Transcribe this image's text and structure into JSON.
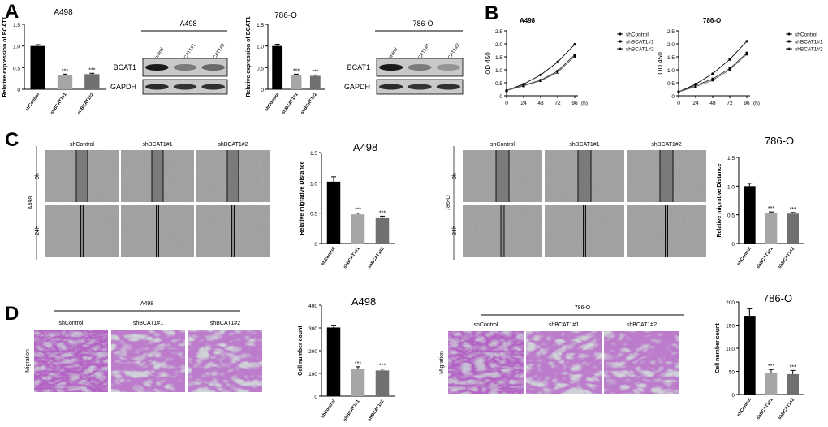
{
  "panels": {
    "A": {
      "letter": "A",
      "bar_ylabel": "Relative expression of BCAT1",
      "blot_rows": [
        "BCAT1",
        "GAPDH"
      ],
      "lanes": [
        "shControl",
        "shBCAT1#1",
        "shBCAT1#2"
      ]
    },
    "B": {
      "letter": "B",
      "xunit": "(h)",
      "ylabel": "OD 450"
    },
    "C": {
      "letter": "C",
      "cols": [
        "shControl",
        "shBCAT1#1",
        "shBCAT1#2"
      ],
      "rows": [
        "0h",
        "24h"
      ],
      "bar_ylabel": "Relative migrative Distance"
    },
    "D": {
      "letter": "D",
      "cols": [
        "shControl",
        "shBCAT1#1",
        "shBCAT1#2"
      ],
      "row": "Migration",
      "bar_ylabel": "Cell number count"
    }
  },
  "colors": {
    "black": "#000000",
    "gray": "#a6a6a6",
    "darkgray": "#707070"
  },
  "chart_data": [
    {
      "id": "A-A498-bar",
      "type": "bar",
      "title": "A498",
      "categories": [
        "shControl",
        "shBCAT1#1",
        "shBCAT1#2"
      ],
      "values": [
        1.0,
        0.33,
        0.35
      ],
      "errors": [
        0.03,
        0.02,
        0.02
      ],
      "significance": [
        "",
        "***",
        "***"
      ],
      "ylabel": "Relative expression of BCAT1",
      "ylim": [
        0,
        1.5
      ],
      "yticks": [
        0,
        0.5,
        1.0,
        1.5
      ]
    },
    {
      "id": "A-786O-bar",
      "type": "bar",
      "title": "786-O",
      "categories": [
        "shControl",
        "shBCAT1#1",
        "shBCAT1#2"
      ],
      "values": [
        1.0,
        0.33,
        0.31
      ],
      "errors": [
        0.04,
        0.02,
        0.02
      ],
      "significance": [
        "",
        "***",
        "***"
      ],
      "ylabel": "Relative expression of BCAT1",
      "ylim": [
        0,
        1.5
      ],
      "yticks": [
        0,
        0.5,
        1.0,
        1.5
      ]
    },
    {
      "id": "B-A498-line",
      "type": "line",
      "title": "A498",
      "x": [
        0,
        24,
        48,
        72,
        96
      ],
      "xlabel": "(h)",
      "ylabel": "OD 450",
      "ylim": [
        0,
        2.5
      ],
      "yticks": [
        0,
        0.5,
        1.0,
        1.5,
        2.0,
        2.5
      ],
      "series": [
        {
          "name": "shControl",
          "values": [
            0.2,
            0.45,
            0.8,
            1.3,
            1.98
          ]
        },
        {
          "name": "shBCAT1#1",
          "values": [
            0.2,
            0.4,
            0.6,
            0.95,
            1.58
          ]
        },
        {
          "name": "shBCAT1#2",
          "values": [
            0.2,
            0.38,
            0.58,
            0.9,
            1.52
          ]
        }
      ]
    },
    {
      "id": "B-786O-line",
      "type": "line",
      "title": "786-O",
      "x": [
        0,
        24,
        48,
        72,
        96
      ],
      "xlabel": "(h)",
      "ylabel": "OD 450",
      "ylim": [
        0,
        2.5
      ],
      "yticks": [
        0,
        0.5,
        1.0,
        1.5,
        2.0,
        2.5
      ],
      "series": [
        {
          "name": "shControl",
          "values": [
            0.15,
            0.45,
            0.85,
            1.4,
            2.1
          ]
        },
        {
          "name": "shBCAT1#1",
          "values": [
            0.15,
            0.4,
            0.65,
            1.05,
            1.65
          ]
        },
        {
          "name": "shBCAT1#2",
          "values": [
            0.15,
            0.35,
            0.6,
            1.0,
            1.6
          ]
        }
      ]
    },
    {
      "id": "C-A498-bar",
      "type": "bar",
      "title": "A498",
      "categories": [
        "shControl",
        "shBCAT1#1",
        "shBCAT1#2"
      ],
      "values": [
        1.02,
        0.48,
        0.43
      ],
      "errors": [
        0.08,
        0.02,
        0.02
      ],
      "significance": [
        "",
        "***",
        "***"
      ],
      "ylabel": "Relative migrative Distance",
      "ylim": [
        0,
        1.5
      ],
      "yticks": [
        0,
        0.5,
        1.0,
        1.5
      ]
    },
    {
      "id": "C-786O-bar",
      "type": "bar",
      "title": "786-O",
      "categories": [
        "shControl",
        "shBCAT1#1",
        "shBCAT1#2"
      ],
      "values": [
        1.0,
        0.53,
        0.52
      ],
      "errors": [
        0.05,
        0.02,
        0.02
      ],
      "significance": [
        "",
        "***",
        "***"
      ],
      "ylabel": "Relative migrative Distance",
      "ylim": [
        0,
        1.5
      ],
      "yticks": [
        0,
        0.5,
        1.0,
        1.5
      ]
    },
    {
      "id": "D-A498-bar",
      "type": "bar",
      "title": "A498",
      "categories": [
        "shControl",
        "shBCAT1#1",
        "shBCAT1#2"
      ],
      "values": [
        302,
        120,
        113
      ],
      "errors": [
        10,
        9,
        6
      ],
      "significance": [
        "",
        "***",
        "***"
      ],
      "ylabel": "Cell number count",
      "ylim": [
        0,
        400
      ],
      "yticks": [
        0,
        100,
        200,
        300,
        400
      ]
    },
    {
      "id": "D-786O-bar",
      "type": "bar",
      "title": "786-O",
      "categories": [
        "shControl",
        "shBCAT1#1",
        "shBCAT1#2"
      ],
      "values": [
        170,
        47,
        44
      ],
      "errors": [
        15,
        7,
        8
      ],
      "significance": [
        "",
        "***",
        "***"
      ],
      "ylabel": "Cell number count",
      "ylim": [
        0,
        200
      ],
      "yticks": [
        0,
        50,
        100,
        150,
        200
      ]
    }
  ]
}
